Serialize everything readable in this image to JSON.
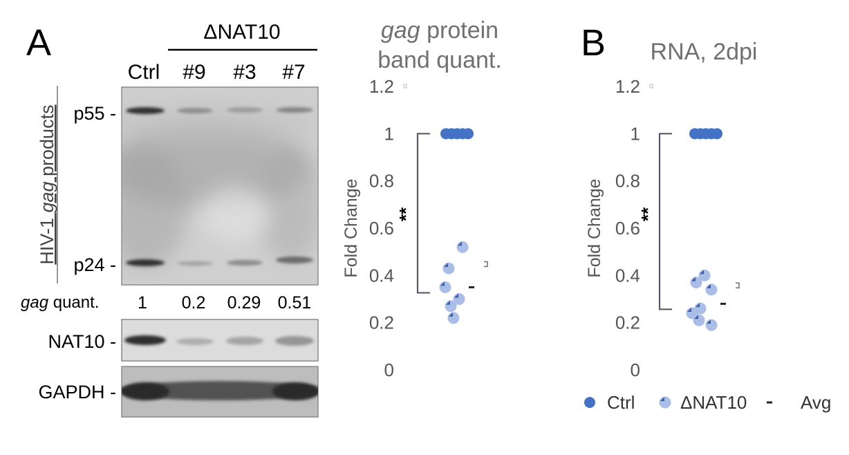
{
  "panel_a": {
    "letter": "A",
    "group_header": "ΔNAT10",
    "lanes": [
      "Ctrl",
      "#9",
      "#3",
      "#7"
    ],
    "yaxis_prefix": "HIV-1 ",
    "yaxis_italic": "gag",
    "yaxis_suffix": " products",
    "band_labels": {
      "p55": "p55 -",
      "p24": "p24 -",
      "nat10": "NAT10 -",
      "gapdh": "GAPDH -"
    },
    "quant_label_italic": "gag",
    "quant_label_rest": " quant.",
    "quant_values": [
      "1",
      "0.2",
      "0.29",
      "0.51"
    ]
  },
  "legend": {
    "ctrl": "Ctrl",
    "nat10": "ΔNAT10",
    "avg": "Avg",
    "colors": {
      "ctrl": "#4472c4",
      "nat10": "#a9bde6",
      "avg": "#222222",
      "bracket": "#595968"
    }
  },
  "chart_data": [
    {
      "type": "scatter",
      "title_italic": "gag",
      "title_line1_rest": " protein",
      "title_line2": "band quant.",
      "ylabel": "Fold Change",
      "ylim": [
        0,
        1.2
      ],
      "yticks": [
        "0",
        "0.2",
        "0.4",
        "0.6",
        "0.8",
        "1",
        "1.2"
      ],
      "significance": "**",
      "series": [
        {
          "name": "Ctrl",
          "values": [
            1,
            1,
            1,
            1,
            1
          ]
        },
        {
          "name": "ΔNAT10",
          "values": [
            0.52,
            0.43,
            0.35,
            0.3,
            0.27,
            0.22
          ]
        }
      ],
      "averages": {
        "Ctrl": 1.0,
        "ΔNAT10": 0.35
      }
    },
    {
      "type": "scatter",
      "title": "RNA, 2dpi",
      "ylabel": "Fold Change",
      "ylim": [
        0,
        1.2
      ],
      "yticks": [
        "0",
        "0.2",
        "0.4",
        "0.6",
        "0.8",
        "1",
        "1.2"
      ],
      "significance": "**",
      "panel_letter": "B",
      "series": [
        {
          "name": "Ctrl",
          "values": [
            1,
            1,
            1,
            1,
            1
          ]
        },
        {
          "name": "ΔNAT10",
          "values": [
            0.4,
            0.37,
            0.34,
            0.26,
            0.24,
            0.21,
            0.19
          ]
        }
      ],
      "averages": {
        "Ctrl": 1.0,
        "ΔNAT10": 0.28
      }
    }
  ]
}
